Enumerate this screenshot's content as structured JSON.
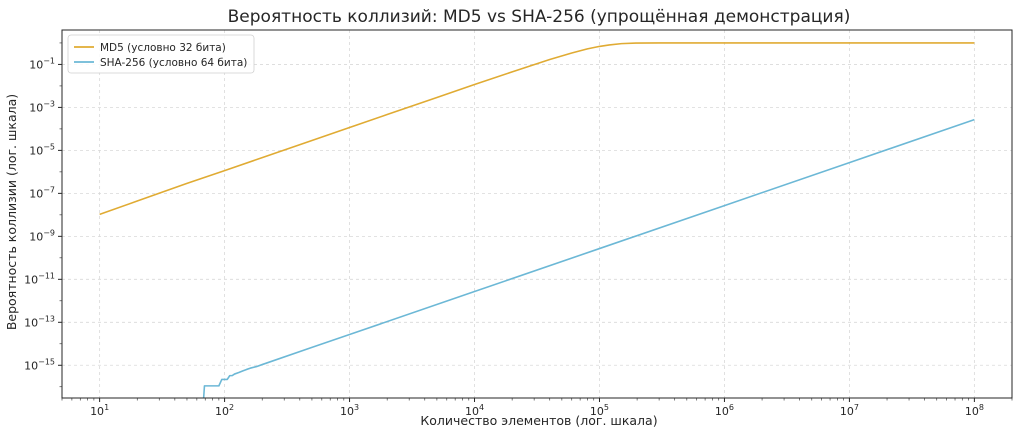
{
  "chart_data": {
    "type": "line",
    "title": "Вероятность коллизий: MD5 vs SHA-256 (упрощённая демонстрация)",
    "xlabel": "Количество элементов (лог. шкала)",
    "ylabel": "Вероятность коллизии (лог. шкала)",
    "x_scale": "log",
    "y_scale": "log",
    "xlim": [
      5,
      200000000
    ],
    "ylim": [
      3e-17,
      4
    ],
    "x_ticks": [
      {
        "base": "10",
        "exp": "1",
        "value": 10
      },
      {
        "base": "10",
        "exp": "2",
        "value": 100
      },
      {
        "base": "10",
        "exp": "3",
        "value": 1000
      },
      {
        "base": "10",
        "exp": "4",
        "value": 10000
      },
      {
        "base": "10",
        "exp": "5",
        "value": 100000
      },
      {
        "base": "10",
        "exp": "6",
        "value": 1000000
      },
      {
        "base": "10",
        "exp": "7",
        "value": 10000000
      },
      {
        "base": "10",
        "exp": "8",
        "value": 100000000
      }
    ],
    "y_ticks": [
      {
        "base": "10",
        "exp": "−15",
        "value": 1e-15
      },
      {
        "base": "10",
        "exp": "−13",
        "value": 1e-13
      },
      {
        "base": "10",
        "exp": "−11",
        "value": 1e-11
      },
      {
        "base": "10",
        "exp": "−9",
        "value": 1e-09
      },
      {
        "base": "10",
        "exp": "−7",
        "value": 1e-07
      },
      {
        "base": "10",
        "exp": "−5",
        "value": 1e-05
      },
      {
        "base": "10",
        "exp": "−3",
        "value": 0.001
      },
      {
        "base": "10",
        "exp": "−1",
        "value": 0.1
      }
    ],
    "grid": true,
    "legend_position": "top-left",
    "series": [
      {
        "name": "MD5 (условно 32 бита)",
        "color": "#e0ab33",
        "x": [
          10,
          20,
          50,
          100,
          200,
          500,
          1000,
          2000,
          5000,
          10000,
          20000,
          40000,
          60000,
          80000,
          100000,
          120000,
          150000,
          200000,
          300000,
          1000000,
          10000000,
          100000000
        ],
        "y": [
          1.05e-08,
          4.4e-08,
          2.9e-07,
          1.15e-06,
          4.6e-06,
          2.9e-05,
          0.000116,
          0.000465,
          0.0029,
          0.0116,
          0.045,
          0.17,
          0.34,
          0.53,
          0.69,
          0.81,
          0.93,
          0.99,
          1.0,
          1.0,
          1.0,
          1.0
        ]
      },
      {
        "name": "SHA-256 (условно 64 бита)",
        "color": "#6cb8d6",
        "x": [
          68,
          69,
          70,
          80,
          90,
          95,
          100,
          105,
          110,
          115,
          120,
          130,
          140,
          150,
          160,
          180,
          200,
          500,
          1000,
          10000,
          100000,
          1000000,
          10000000,
          100000000
        ],
        "y": [
          3e-17,
          1.1e-16,
          1.1e-16,
          1.1e-16,
          1.1e-16,
          2.2e-16,
          2.2e-16,
          2.2e-16,
          3.3e-16,
          3.3e-16,
          3.9e-16,
          4.6e-16,
          5.5e-16,
          6.4e-16,
          7.3e-16,
          8.7e-16,
          1.08e-15,
          6.8e-15,
          2.7e-14,
          2.7e-12,
          2.7e-10,
          2.7e-08,
          2.7e-06,
          0.00027
        ]
      }
    ]
  }
}
